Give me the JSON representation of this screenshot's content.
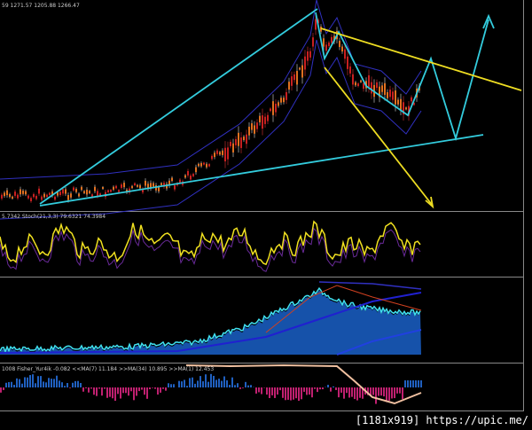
{
  "main_panel": {
    "info": "59 1271.57 1205.88 1266.47"
  },
  "stoch_panel": {
    "info": "5.7342  Stoch(21,3,3) 79.6321 74.3984"
  },
  "fisher_panel": {
    "info": "1008  Fisher_Yur4ik -0.082  <<MA(7) 11.184  >>MA(34) 10.895  >>MA(1) 12.453"
  },
  "watermark": "[1181x919] https://upic.me/"
}
